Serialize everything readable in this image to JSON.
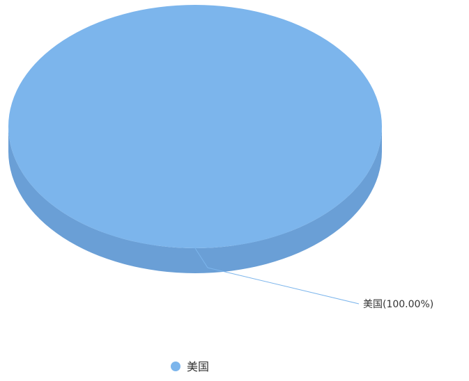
{
  "chart_data": {
    "type": "pie",
    "title": "",
    "style": "3d",
    "slices": [
      {
        "label": "美国",
        "value": 100.0,
        "data_label": "美国(100.00%)",
        "color": "#7cb5ec",
        "side_color": "#6a9fd6"
      }
    ],
    "legend": {
      "placement": "bottom-center",
      "items": [
        {
          "label": "美国",
          "color": "#7cb5ec"
        }
      ]
    }
  }
}
